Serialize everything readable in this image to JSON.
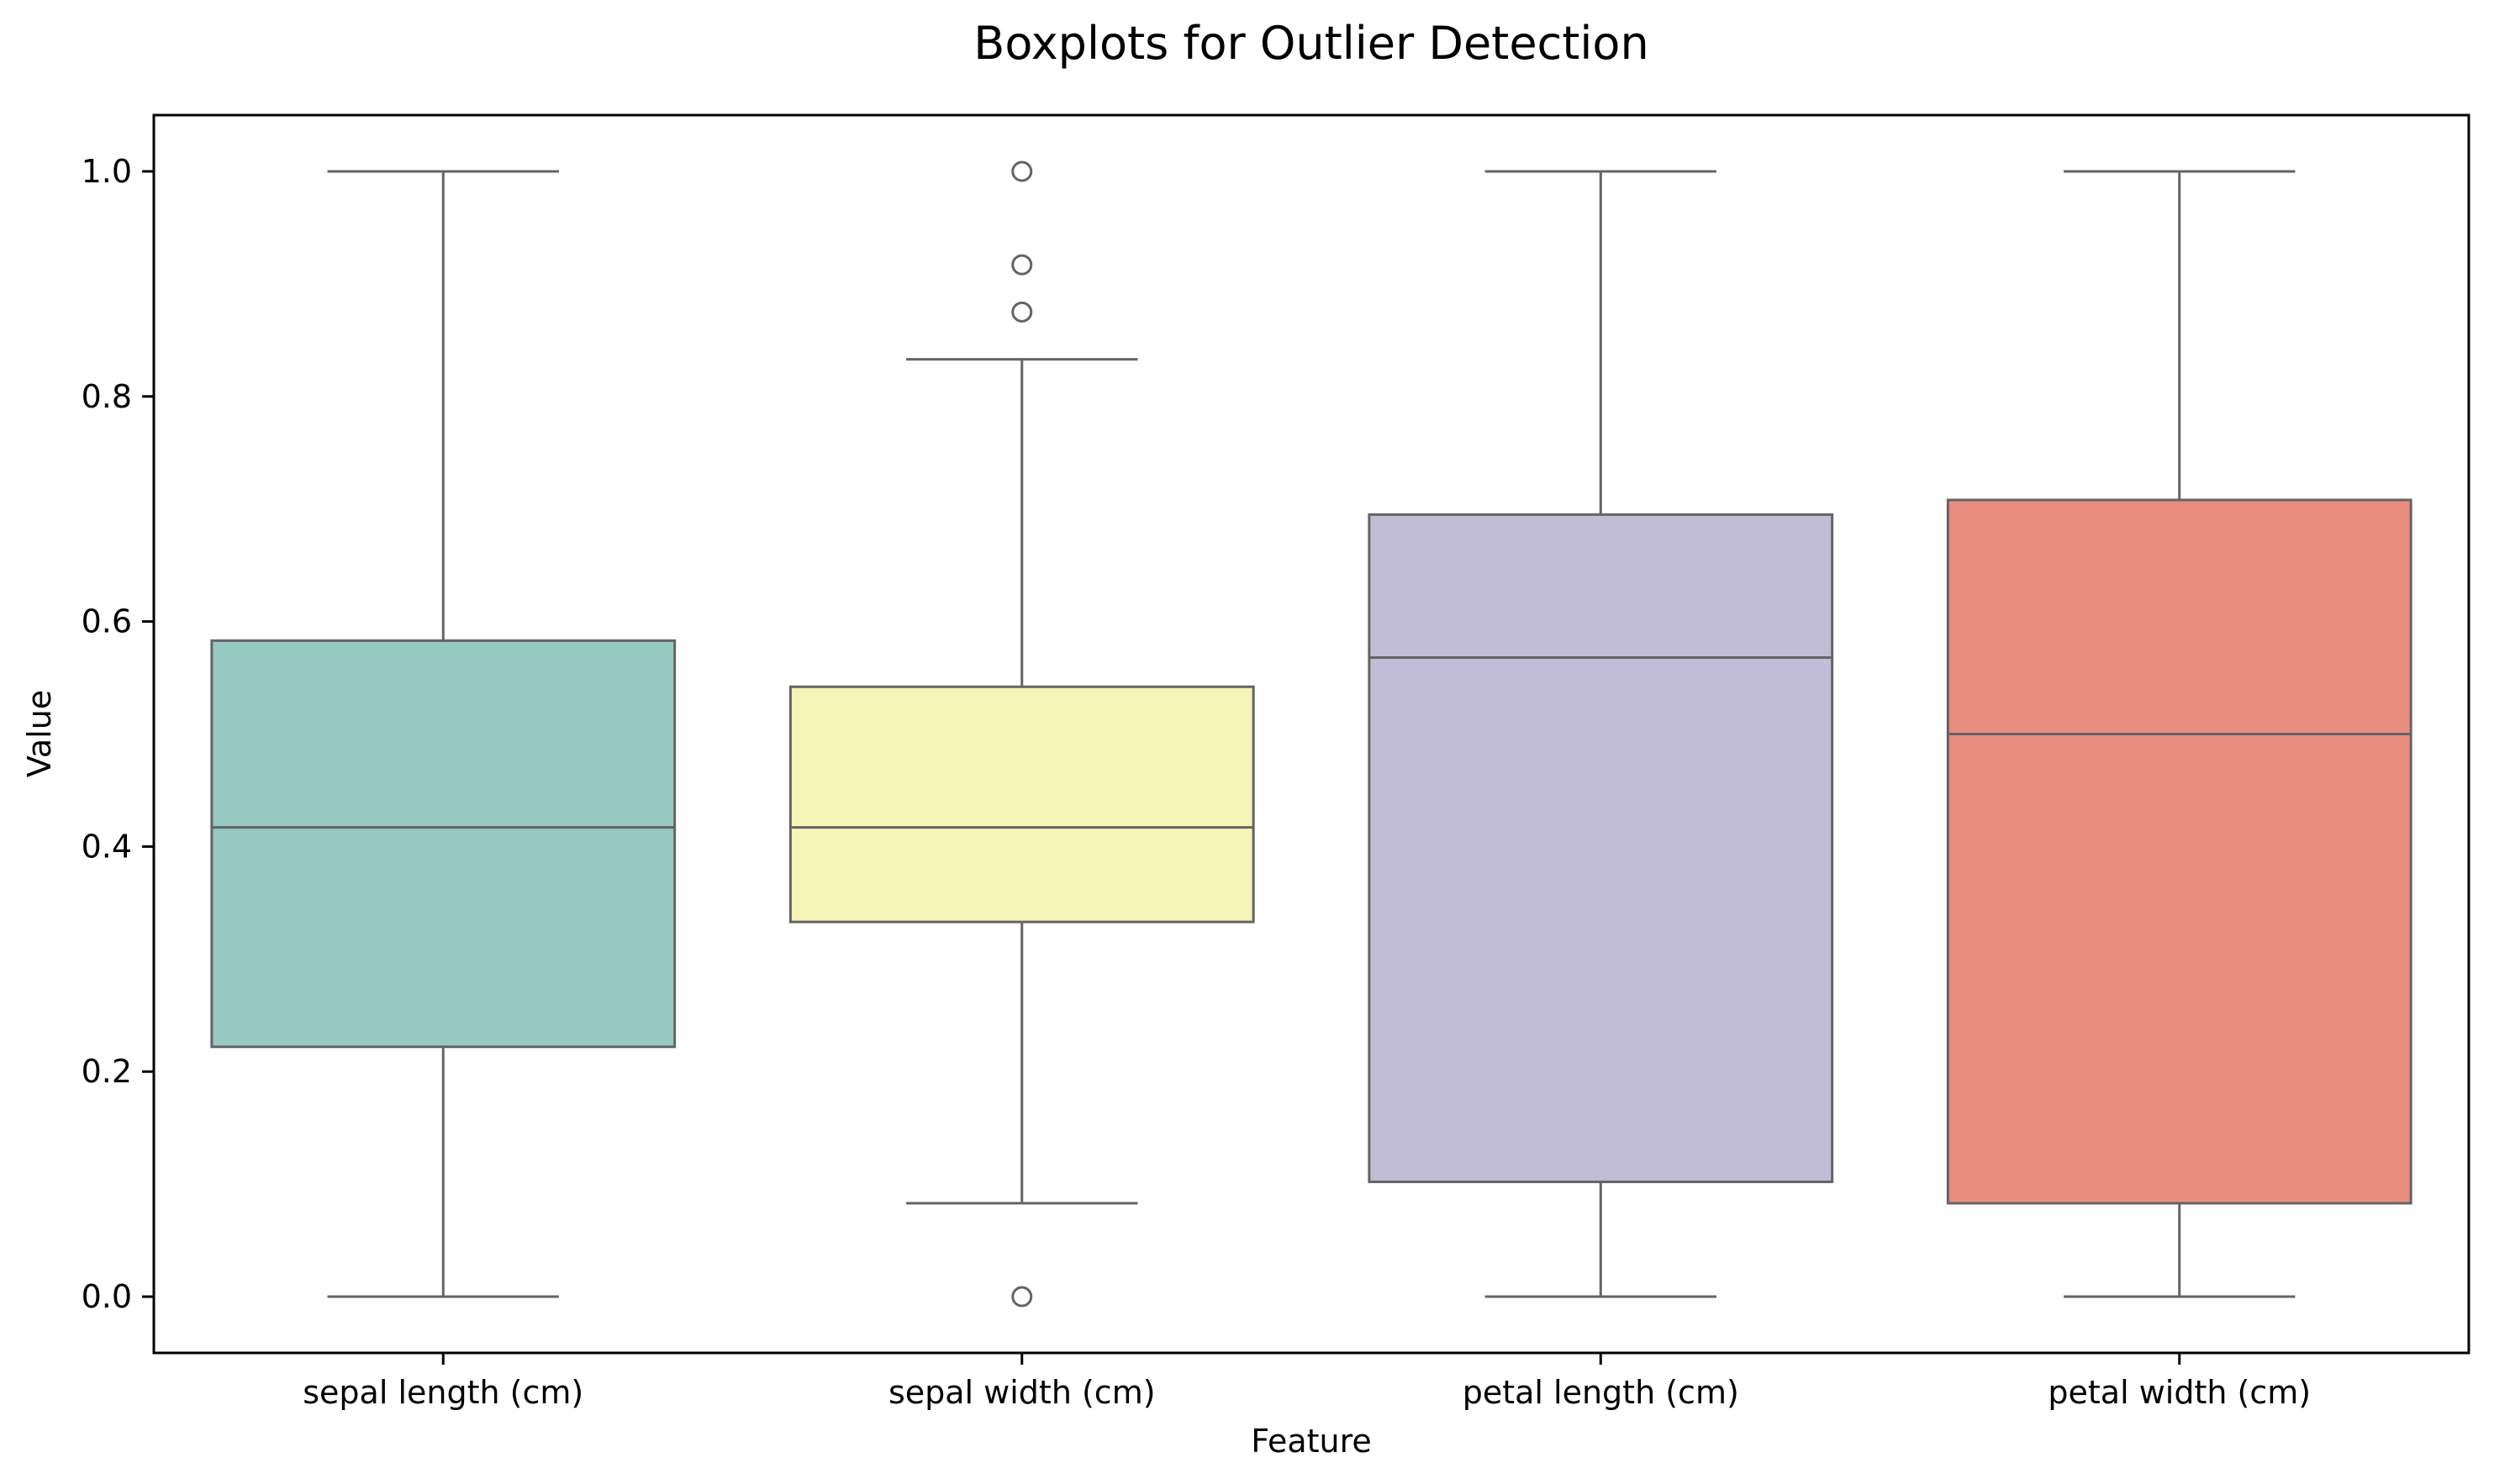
{
  "chart_data": {
    "type": "boxplot",
    "title": "Boxplots for Outlier Detection",
    "xlabel": "Feature",
    "ylabel": "Value",
    "ylim": [
      -0.05,
      1.05
    ],
    "yticks": [
      0.0,
      0.2,
      0.4,
      0.6,
      0.8,
      1.0
    ],
    "ytick_labels": [
      "0.0",
      "0.2",
      "0.4",
      "0.6",
      "0.8",
      "1.0"
    ],
    "grid": false,
    "categories": [
      "sepal length (cm)",
      "sepal width (cm)",
      "petal length (cm)",
      "petal width (cm)"
    ],
    "boxes": [
      {
        "category": "sepal length (cm)",
        "whisker_low": 0.0,
        "q1": 0.222,
        "median": 0.417,
        "q3": 0.583,
        "whisker_high": 1.0,
        "outliers": [],
        "color": "#96C9C0"
      },
      {
        "category": "sepal width (cm)",
        "whisker_low": 0.083,
        "q1": 0.333,
        "median": 0.417,
        "q3": 0.542,
        "whisker_high": 0.833,
        "outliers": [
          0.0,
          0.875,
          0.917,
          1.0
        ],
        "color": "#F6F5B8"
      },
      {
        "category": "petal length (cm)",
        "whisker_low": 0.0,
        "q1": 0.102,
        "median": 0.568,
        "q3": 0.695,
        "whisker_high": 1.0,
        "outliers": [],
        "color": "#C1BDD6"
      },
      {
        "category": "petal width (cm)",
        "whisker_low": 0.0,
        "q1": 0.083,
        "median": 0.5,
        "q3": 0.708,
        "whisker_high": 1.0,
        "outliers": [],
        "color": "#EA8D81"
      }
    ],
    "line_color": "#646464"
  }
}
